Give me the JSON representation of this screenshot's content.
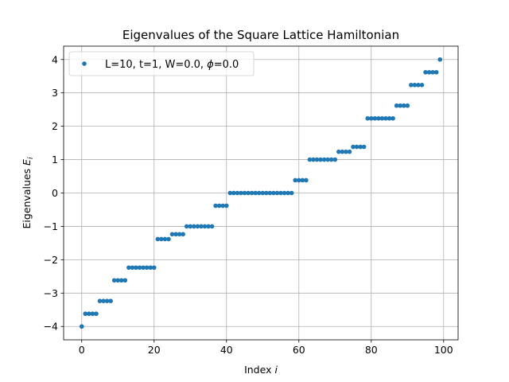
{
  "chart_data": {
    "type": "scatter",
    "title": "Eigenvalues of the Square Lattice Hamiltonian",
    "xlabel_main": "Index ",
    "xlabel_var": "i",
    "ylabel_main": "Eigenvalues ",
    "ylabel_var": "E",
    "ylabel_sub": "i",
    "xlim": [
      -5,
      104
    ],
    "ylim": [
      -4.4,
      4.4
    ],
    "xticks": [
      0,
      20,
      40,
      60,
      80,
      100
    ],
    "xtick_labels": [
      "0",
      "20",
      "40",
      "60",
      "80",
      "100"
    ],
    "yticks": [
      -4,
      -3,
      -2,
      -1,
      0,
      1,
      2,
      3,
      4
    ],
    "ytick_labels": [
      "−4",
      "−3",
      "−2",
      "−1",
      "0",
      "1",
      "2",
      "3",
      "4"
    ],
    "grid": true,
    "legend_placement": "upper-left",
    "legend_main": "L=10, t=1, W=0.0, ",
    "legend_phi": "ϕ",
    "legend_tail": "=0.0",
    "marker_color": "#1f77b4",
    "levels": [
      {
        "value": -4.0,
        "count": 1
      },
      {
        "value": -3.618,
        "count": 4
      },
      {
        "value": -3.236,
        "count": 4
      },
      {
        "value": -2.618,
        "count": 4
      },
      {
        "value": -2.236,
        "count": 8
      },
      {
        "value": -1.382,
        "count": 4
      },
      {
        "value": -1.236,
        "count": 4
      },
      {
        "value": -1.0,
        "count": 8
      },
      {
        "value": -0.382,
        "count": 4
      },
      {
        "value": 0.0,
        "count": 18
      },
      {
        "value": 0.382,
        "count": 4
      },
      {
        "value": 1.0,
        "count": 8
      },
      {
        "value": 1.236,
        "count": 4
      },
      {
        "value": 1.382,
        "count": 4
      },
      {
        "value": 2.236,
        "count": 8
      },
      {
        "value": 2.618,
        "count": 4
      },
      {
        "value": 3.236,
        "count": 4
      },
      {
        "value": 3.618,
        "count": 4
      },
      {
        "value": 4.0,
        "count": 1
      }
    ]
  }
}
